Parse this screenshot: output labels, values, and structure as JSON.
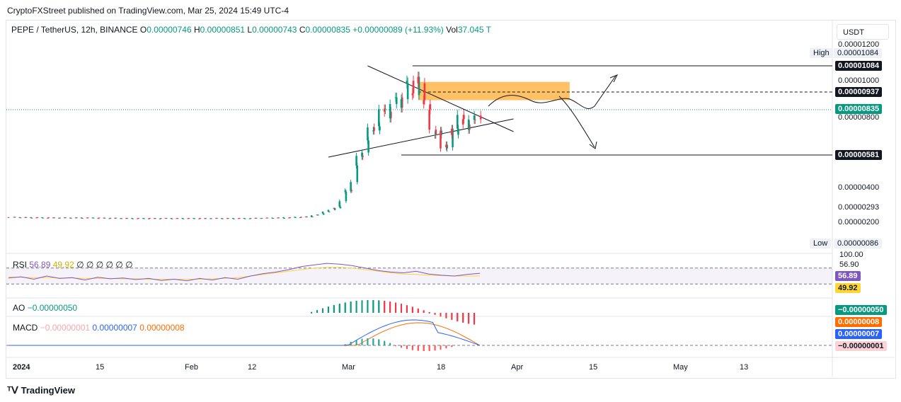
{
  "publisher": "CryptoFXStreet published on TradingView.com, Mar 25, 2024 15:49 UTC-4",
  "header": {
    "symbol": "PEPE / TetherUS, 12h, BINANCE",
    "o_label": "O",
    "o": "0.00000746",
    "h_label": "H",
    "h": "0.00000851",
    "l_label": "L",
    "l": "0.00000743",
    "c_label": "C",
    "c": "0.00000835",
    "change": "+0.00000089 (+11.93%)",
    "vol_label": "Vol",
    "vol": "37.045 T"
  },
  "currency_button": "USDT",
  "price_axis": {
    "ticks": [
      "0.00001200",
      "0.00001000",
      "0.00000800",
      "0.00000400",
      "0.00000293",
      "0.00000200"
    ],
    "high_label": "High",
    "high_value": "0.00001084",
    "low_label": "Low",
    "low_value": "0.00000086",
    "tags": {
      "resistance_high": "0.00001084",
      "ob_mid": "0.00000937",
      "current": "0.00000835",
      "support": "0.00000581"
    }
  },
  "rsi": {
    "label": "RSI",
    "value": "56.89",
    "ma": "49.92",
    "extras": [
      "∅",
      "∅",
      "∅",
      "∅",
      "∅",
      "∅"
    ],
    "axis_top": "100.00",
    "axis_level": "56.90",
    "tag_value": "56.89",
    "tag_ma": "49.92"
  },
  "ao": {
    "label": "AO",
    "value": "−0.00000050",
    "tag": "−0.00000050"
  },
  "macd": {
    "label": "MACD",
    "hist": "−0.00000001",
    "macd": "0.00000007",
    "signal": "0.00000008",
    "tag_signal": "0.00000008",
    "tag_macd": "0.00000007",
    "tag_hist": "−0.00000001"
  },
  "time_axis": [
    "2024",
    "15",
    "Feb",
    "12",
    "Mar",
    "18",
    "Apr",
    "15",
    "May",
    "13"
  ],
  "footer_logo": "TradingView",
  "colors": {
    "up": "#089981",
    "down": "#f23645",
    "orderblock": "#ff9800",
    "rsi": "#7e57c2",
    "rsi_ma": "#fdd835",
    "macd": "#2962ff",
    "signal": "#ff6d00"
  },
  "chart_data": {
    "type": "candlestick",
    "title": "PEPE / TetherUS, 12h, BINANCE",
    "interval": "12h",
    "x_range": [
      "2024-01-01",
      "2024-05-20"
    ],
    "ohlc_last": {
      "open": 7.46e-06,
      "high": 8.51e-06,
      "low": 7.43e-06,
      "close": 8.35e-06
    },
    "close_series": [
      [
        "2024-01-01",
        1.2e-06
      ],
      [
        "2024-01-08",
        1.1e-06
      ],
      [
        "2024-01-15",
        1.1e-06
      ],
      [
        "2024-01-22",
        1e-06
      ],
      [
        "2024-01-29",
        1e-06
      ],
      [
        "2024-02-05",
        1e-06
      ],
      [
        "2024-02-12",
        1e-06
      ],
      [
        "2024-02-19",
        1.1e-06
      ],
      [
        "2024-02-24",
        1.3e-06
      ],
      [
        "2024-02-27",
        2.2e-06
      ],
      [
        "2024-02-29",
        3.1e-06
      ],
      [
        "2024-03-02",
        4.1e-06
      ],
      [
        "2024-03-04",
        6e-06
      ],
      [
        "2024-03-06",
        7.3e-06
      ],
      [
        "2024-03-08",
        8.2e-06
      ],
      [
        "2024-03-10",
        8.6e-06
      ],
      [
        "2024-03-12",
        9.3e-06
      ],
      [
        "2024-03-14",
        9.8e-06
      ],
      [
        "2024-03-15",
        8.8e-06
      ],
      [
        "2024-03-17",
        7.2e-06
      ],
      [
        "2024-03-18",
        6.8e-06
      ],
      [
        "2024-03-19",
        6.1e-06
      ],
      [
        "2024-03-20",
        7.2e-06
      ],
      [
        "2024-03-22",
        7.8e-06
      ],
      [
        "2024-03-24",
        7.5e-06
      ],
      [
        "2024-03-25",
        8.35e-06
      ]
    ],
    "levels": {
      "high": 1.084e-05,
      "order_block_mid": 9.37e-06,
      "current": 8.35e-06,
      "support": 5.81e-06,
      "low": 8.6e-07
    },
    "order_block": {
      "from": "2024-03-14",
      "to": "2024-04-10",
      "range": [
        8.9e-06,
        9.9e-06
      ]
    },
    "rsi": {
      "value": 56.89,
      "ma": 49.92,
      "upper": 70,
      "lower": 30
    },
    "ao_last": -5e-07,
    "macd": {
      "macd": 7e-08,
      "signal": 8e-08,
      "histogram": -1e-08
    }
  }
}
